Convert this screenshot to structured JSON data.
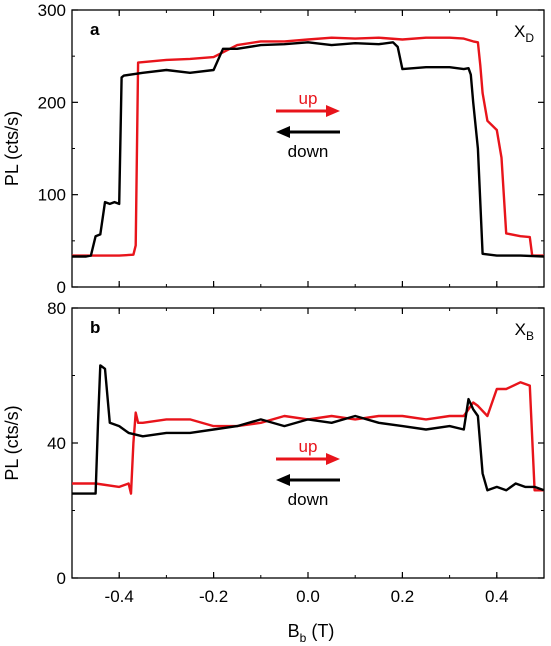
{
  "colors": {
    "up": "#e8141b",
    "down": "#000000"
  },
  "xlabel": {
    "base": "B",
    "sub": "b",
    "unit": " (T)"
  },
  "chart_data": [
    {
      "type": "line",
      "panel": "a",
      "state_label": {
        "base": "X",
        "sub": "D"
      },
      "ylabel": "PL (cts/s)",
      "xlim": [
        -0.5,
        0.5
      ],
      "ylim": [
        0,
        300
      ],
      "yticks": [
        0,
        100,
        200,
        300
      ],
      "xticks": [
        -0.4,
        -0.2,
        0.0,
        0.2,
        0.4
      ],
      "legend": {
        "up": "up",
        "down": "down"
      },
      "series": [
        {
          "name": "up",
          "x": [
            -0.5,
            -0.45,
            -0.4,
            -0.37,
            -0.365,
            -0.36,
            -0.3,
            -0.25,
            -0.2,
            -0.15,
            -0.1,
            -0.05,
            0.0,
            0.05,
            0.1,
            0.15,
            0.2,
            0.25,
            0.3,
            0.33,
            0.35,
            0.36,
            0.365,
            0.37,
            0.38,
            0.39,
            0.4,
            0.41,
            0.42,
            0.45,
            0.47,
            0.475,
            0.5
          ],
          "y": [
            34,
            34,
            34,
            35,
            45,
            243,
            246,
            247,
            249,
            262,
            266,
            266,
            268,
            270,
            269,
            270,
            268,
            270,
            270,
            269,
            266,
            265,
            240,
            210,
            180,
            175,
            170,
            140,
            58,
            55,
            54,
            34,
            34
          ]
        },
        {
          "name": "down",
          "x": [
            -0.5,
            -0.48,
            -0.47,
            -0.46,
            -0.45,
            -0.44,
            -0.43,
            -0.42,
            -0.41,
            -0.4,
            -0.395,
            -0.39,
            -0.35,
            -0.3,
            -0.25,
            -0.2,
            -0.18,
            -0.15,
            -0.1,
            -0.05,
            0.0,
            0.05,
            0.1,
            0.15,
            0.18,
            0.19,
            0.2,
            0.25,
            0.3,
            0.33,
            0.34,
            0.345,
            0.35,
            0.36,
            0.37,
            0.4,
            0.45,
            0.5
          ],
          "y": [
            33,
            33,
            33,
            34,
            55,
            57,
            92,
            90,
            92,
            90,
            227,
            229,
            232,
            235,
            232,
            235,
            258,
            258,
            262,
            263,
            265,
            262,
            264,
            263,
            265,
            260,
            236,
            238,
            238,
            236,
            237,
            230,
            200,
            150,
            36,
            34,
            34,
            33
          ]
        }
      ]
    },
    {
      "type": "line",
      "panel": "b",
      "state_label": {
        "base": "X",
        "sub": "B"
      },
      "ylabel": "PL (cts/s)",
      "xlim": [
        -0.5,
        0.5
      ],
      "ylim": [
        0,
        80
      ],
      "yticks": [
        0,
        40,
        80
      ],
      "xticks": [
        -0.4,
        -0.2,
        0.0,
        0.2,
        0.4
      ],
      "xtick_labels": [
        "-0.4",
        "-0.2",
        "0.0",
        "0.2",
        "0.4"
      ],
      "legend": {
        "up": "up",
        "down": "down"
      },
      "series": [
        {
          "name": "up",
          "x": [
            -0.5,
            -0.45,
            -0.4,
            -0.38,
            -0.375,
            -0.37,
            -0.365,
            -0.36,
            -0.35,
            -0.3,
            -0.25,
            -0.2,
            -0.15,
            -0.1,
            -0.05,
            0.0,
            0.05,
            0.1,
            0.15,
            0.2,
            0.25,
            0.3,
            0.33,
            0.34,
            0.35,
            0.36,
            0.38,
            0.4,
            0.42,
            0.45,
            0.47,
            0.48,
            0.5
          ],
          "y": [
            28,
            28,
            27,
            28,
            25,
            40,
            49,
            46,
            46,
            47,
            47,
            45,
            45,
            46,
            48,
            47,
            48,
            47,
            48,
            48,
            47,
            48,
            48,
            50,
            52,
            51,
            48,
            56,
            56,
            58,
            57,
            26,
            26
          ]
        },
        {
          "name": "down",
          "x": [
            -0.5,
            -0.47,
            -0.45,
            -0.445,
            -0.44,
            -0.43,
            -0.42,
            -0.4,
            -0.38,
            -0.35,
            -0.3,
            -0.25,
            -0.2,
            -0.15,
            -0.1,
            -0.05,
            0.0,
            0.05,
            0.1,
            0.15,
            0.2,
            0.25,
            0.3,
            0.33,
            0.34,
            0.35,
            0.36,
            0.37,
            0.38,
            0.4,
            0.42,
            0.44,
            0.46,
            0.48,
            0.5
          ],
          "y": [
            25,
            25,
            25,
            46,
            63,
            62,
            46,
            45,
            43,
            42,
            43,
            43,
            44,
            45,
            47,
            45,
            47,
            46,
            48,
            46,
            45,
            44,
            45,
            44,
            53,
            50,
            48,
            31,
            26,
            27,
            26,
            28,
            27,
            27,
            26
          ]
        }
      ]
    }
  ]
}
